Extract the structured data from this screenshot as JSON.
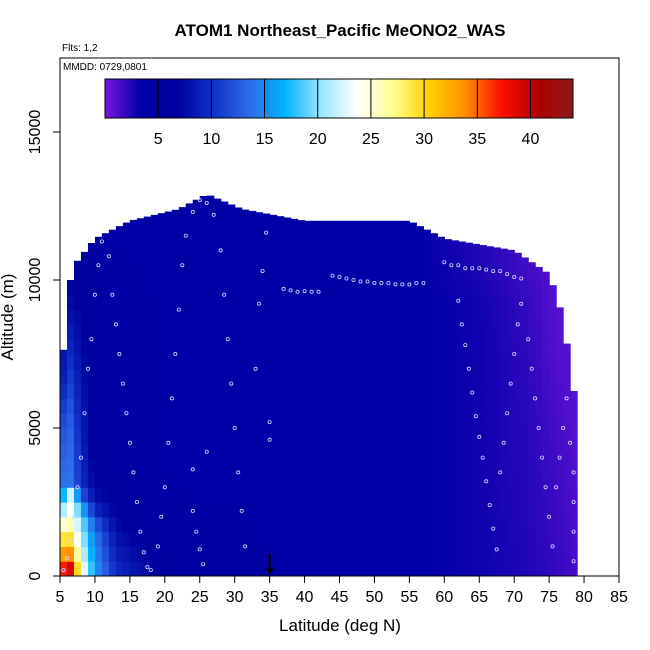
{
  "chart_data": {
    "type": "heatmap",
    "title": "ATOM1 Northeast_Pacific MeONO2_WAS",
    "flights_label": "Flts: 1,2",
    "date_label": "MMDD: 0729,0801",
    "xlabel": "Latitude (deg N)",
    "ylabel": "Altitude (m)",
    "xlim": [
      5,
      85
    ],
    "ylim": [
      0,
      17500
    ],
    "x_ticks": [
      5,
      10,
      15,
      20,
      25,
      30,
      35,
      40,
      45,
      50,
      55,
      60,
      65,
      70,
      75,
      80,
      85
    ],
    "y_ticks": [
      0,
      5000,
      10000,
      15000
    ],
    "colorbar": {
      "ticks": [
        5,
        10,
        15,
        20,
        25,
        30,
        35,
        40
      ],
      "range": [
        0,
        44
      ],
      "palette": [
        "#7a16e0",
        "#0000a8",
        "#00009c",
        "#1030c8",
        "#2f6ae8",
        "#00b4ff",
        "#9ae6ff",
        "#ffffff",
        "#ffff90",
        "#ffd000",
        "#ff9000",
        "#ff1000",
        "#b00000",
        "#8a1a1a"
      ]
    },
    "envelope_top": [
      [
        5.3,
        6900
      ],
      [
        6,
        9500
      ],
      [
        7,
        10500
      ],
      [
        10,
        11400
      ],
      [
        15,
        12000
      ],
      [
        22,
        12400
      ],
      [
        26,
        12900
      ],
      [
        31,
        12400
      ],
      [
        40,
        12000
      ],
      [
        55,
        12000
      ],
      [
        60,
        11400
      ],
      [
        70,
        11000
      ],
      [
        75,
        10200
      ],
      [
        77,
        8700
      ],
      [
        78,
        7000
      ],
      [
        79,
        5500
      ],
      [
        79,
        0
      ]
    ],
    "gradient_columns": [
      {
        "lat": 5.3,
        "values": [
          [
            0,
            38
          ],
          [
            500,
            35
          ],
          [
            1500,
            27
          ],
          [
            3000,
            14
          ],
          [
            5000,
            12
          ],
          [
            7000,
            8
          ]
        ]
      },
      {
        "lat": 6.5,
        "values": [
          [
            0,
            42
          ],
          [
            500,
            36
          ],
          [
            1500,
            27
          ],
          [
            2800,
            22
          ],
          [
            3200,
            14
          ],
          [
            5000,
            13
          ],
          [
            9500,
            7
          ]
        ]
      },
      {
        "lat": 8,
        "values": [
          [
            0,
            26
          ],
          [
            1000,
            22
          ],
          [
            2000,
            20
          ],
          [
            3000,
            10
          ],
          [
            5000,
            9
          ],
          [
            10500,
            6
          ]
        ]
      },
      {
        "lat": 10,
        "values": [
          [
            0,
            16
          ],
          [
            1500,
            14
          ],
          [
            2500,
            8
          ],
          [
            4000,
            6
          ],
          [
            11000,
            5
          ]
        ]
      },
      {
        "lat": 13,
        "values": [
          [
            0,
            10
          ],
          [
            2000,
            7
          ],
          [
            4000,
            5
          ],
          [
            11500,
            4
          ]
        ]
      },
      {
        "lat": 20,
        "values": [
          [
            0,
            6
          ],
          [
            3000,
            4
          ],
          [
            12000,
            4
          ]
        ]
      },
      {
        "lat": 35,
        "values": [
          [
            0,
            4
          ],
          [
            12500,
            3.5
          ]
        ]
      },
      {
        "lat": 55,
        "values": [
          [
            0,
            3.5
          ],
          [
            12000,
            3.5
          ]
        ]
      },
      {
        "lat": 65,
        "values": [
          [
            0,
            3
          ],
          [
            9000,
            3
          ],
          [
            11000,
            2.5
          ]
        ]
      },
      {
        "lat": 72,
        "values": [
          [
            0,
            2.5
          ],
          [
            9000,
            2
          ],
          [
            10500,
            1.5
          ]
        ]
      },
      {
        "lat": 76,
        "values": [
          [
            0,
            2
          ],
          [
            5000,
            1.5
          ],
          [
            8000,
            1
          ]
        ]
      },
      {
        "lat": 79,
        "values": [
          [
            0,
            1.5
          ],
          [
            5000,
            1
          ]
        ]
      }
    ],
    "flight_track_points": [
      [
        5.5,
        200
      ],
      [
        6,
        600
      ],
      [
        6.5,
        1200
      ],
      [
        7,
        2000
      ],
      [
        7.5,
        3000
      ],
      [
        8,
        4000
      ],
      [
        8.5,
        5500
      ],
      [
        9,
        7000
      ],
      [
        9.5,
        8000
      ],
      [
        10,
        9500
      ],
      [
        10.5,
        10500
      ],
      [
        11,
        11300
      ],
      [
        12,
        10800
      ],
      [
        12.5,
        9500
      ],
      [
        13,
        8500
      ],
      [
        13.5,
        7500
      ],
      [
        14,
        6500
      ],
      [
        14.5,
        5500
      ],
      [
        15,
        4500
      ],
      [
        15.5,
        3500
      ],
      [
        16,
        2500
      ],
      [
        16.5,
        1500
      ],
      [
        17,
        800
      ],
      [
        17.5,
        300
      ],
      [
        18,
        200
      ],
      [
        19,
        1000
      ],
      [
        19.5,
        2000
      ],
      [
        20,
        3000
      ],
      [
        20.5,
        4500
      ],
      [
        21,
        6000
      ],
      [
        21.5,
        7500
      ],
      [
        22,
        9000
      ],
      [
        22.5,
        10500
      ],
      [
        23,
        11500
      ],
      [
        24,
        12300
      ],
      [
        25,
        12700
      ],
      [
        26,
        12600
      ],
      [
        27,
        12200
      ],
      [
        28,
        11000
      ],
      [
        28.5,
        9500
      ],
      [
        29,
        8000
      ],
      [
        29.5,
        6500
      ],
      [
        30,
        5000
      ],
      [
        30.5,
        3500
      ],
      [
        31,
        2200
      ],
      [
        31.5,
        1000
      ],
      [
        33,
        7000
      ],
      [
        33.5,
        9200
      ],
      [
        34,
        10300
      ],
      [
        34.5,
        11600
      ],
      [
        37,
        9700
      ],
      [
        38,
        9650
      ],
      [
        39,
        9600
      ],
      [
        40,
        9620
      ],
      [
        41,
        9600
      ],
      [
        42,
        9600
      ],
      [
        44,
        10150
      ],
      [
        45,
        10100
      ],
      [
        46,
        10050
      ],
      [
        47,
        10000
      ],
      [
        48,
        9950
      ],
      [
        49,
        9950
      ],
      [
        50,
        9900
      ],
      [
        51,
        9900
      ],
      [
        52,
        9900
      ],
      [
        53,
        9850
      ],
      [
        54,
        9850
      ],
      [
        55,
        9850
      ],
      [
        56,
        9900
      ],
      [
        57,
        9900
      ],
      [
        60,
        10600
      ],
      [
        61,
        10500
      ],
      [
        62,
        10500
      ],
      [
        63,
        10400
      ],
      [
        64,
        10400
      ],
      [
        65,
        10400
      ],
      [
        66,
        10350
      ],
      [
        67,
        10300
      ],
      [
        68,
        10300
      ],
      [
        69,
        10200
      ],
      [
        70,
        10100
      ],
      [
        71,
        10050
      ],
      [
        62,
        9300
      ],
      [
        62.5,
        8500
      ],
      [
        63,
        7800
      ],
      [
        63.5,
        7000
      ],
      [
        64,
        6200
      ],
      [
        64.5,
        5400
      ],
      [
        65,
        4700
      ],
      [
        65.5,
        4000
      ],
      [
        66,
        3200
      ],
      [
        66.5,
        2400
      ],
      [
        67,
        1600
      ],
      [
        67.5,
        900
      ],
      [
        68,
        3500
      ],
      [
        68.5,
        4500
      ],
      [
        69,
        5500
      ],
      [
        69.5,
        6500
      ],
      [
        70,
        7500
      ],
      [
        70.5,
        8500
      ],
      [
        71,
        9200
      ],
      [
        72,
        8000
      ],
      [
        72.5,
        7000
      ],
      [
        73,
        6000
      ],
      [
        73.5,
        5000
      ],
      [
        74,
        4000
      ],
      [
        74.5,
        3000
      ],
      [
        75,
        2000
      ],
      [
        75.5,
        1000
      ],
      [
        76,
        3000
      ],
      [
        76.5,
        4000
      ],
      [
        77,
        5000
      ],
      [
        77.5,
        6000
      ],
      [
        78,
        4500
      ],
      [
        78.5,
        3500
      ],
      [
        78.5,
        2500
      ],
      [
        78.5,
        1500
      ],
      [
        78.5,
        500
      ],
      [
        24,
        2200
      ],
      [
        24.5,
        1500
      ],
      [
        25,
        900
      ],
      [
        25.5,
        400
      ],
      [
        35,
        4600
      ],
      [
        35,
        5200
      ],
      [
        24,
        3600
      ],
      [
        26,
        4200
      ]
    ],
    "arrow_marker_lat": 35
  }
}
